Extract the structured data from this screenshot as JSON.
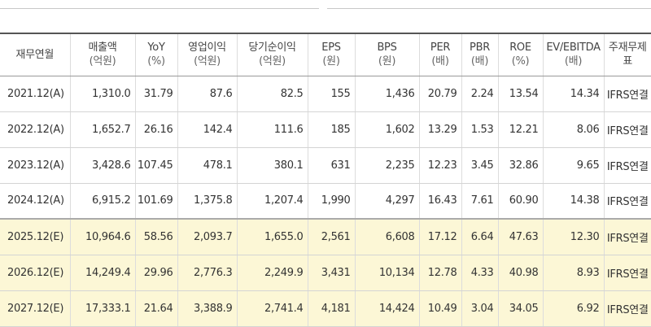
{
  "table": {
    "columns": [
      {
        "label": "재무연월",
        "unit": ""
      },
      {
        "label": "매출액",
        "unit": "(억원)"
      },
      {
        "label": "YoY",
        "unit": "(%)"
      },
      {
        "label": "영업이익",
        "unit": "(억원)"
      },
      {
        "label": "당기순이익",
        "unit": "(억원)"
      },
      {
        "label": "EPS",
        "unit": "(원)"
      },
      {
        "label": "BPS",
        "unit": "(원)"
      },
      {
        "label": "PER",
        "unit": "(배)"
      },
      {
        "label": "PBR",
        "unit": "(배)"
      },
      {
        "label": "ROE",
        "unit": "(%)"
      },
      {
        "label": "EV/EBITDA",
        "unit": "(배)"
      },
      {
        "label": "주재무제표",
        "unit": ""
      }
    ],
    "rows": [
      {
        "period": "2021.12(A)",
        "estimate": false,
        "values": [
          "1,310.0",
          "31.79",
          "87.6",
          "82.5",
          "155",
          "1,436",
          "20.79",
          "2.24",
          "13.54",
          "14.34"
        ],
        "basis": "IFRS연결"
      },
      {
        "period": "2022.12(A)",
        "estimate": false,
        "values": [
          "1,652.7",
          "26.16",
          "142.4",
          "111.6",
          "185",
          "1,602",
          "13.29",
          "1.53",
          "12.21",
          "8.06"
        ],
        "basis": "IFRS연결"
      },
      {
        "period": "2023.12(A)",
        "estimate": false,
        "values": [
          "3,428.6",
          "107.45",
          "478.1",
          "380.1",
          "631",
          "2,235",
          "12.23",
          "3.45",
          "32.86",
          "9.65"
        ],
        "basis": "IFRS연결"
      },
      {
        "period": "2024.12(A)",
        "estimate": false,
        "values": [
          "6,915.2",
          "101.69",
          "1,375.8",
          "1,207.4",
          "1,990",
          "4,297",
          "16.43",
          "7.61",
          "60.90",
          "14.38"
        ],
        "basis": "IFRS연결"
      },
      {
        "period": "2025.12(E)",
        "estimate": true,
        "values": [
          "10,964.6",
          "58.56",
          "2,093.7",
          "1,655.0",
          "2,561",
          "6,608",
          "17.12",
          "6.64",
          "47.63",
          "12.30"
        ],
        "basis": "IFRS연결"
      },
      {
        "period": "2026.12(E)",
        "estimate": true,
        "values": [
          "14,249.4",
          "29.96",
          "2,776.3",
          "2,249.9",
          "3,431",
          "10,134",
          "12.78",
          "4.33",
          "40.98",
          "8.93"
        ],
        "basis": "IFRS연결"
      },
      {
        "period": "2027.12(E)",
        "estimate": true,
        "values": [
          "17,333.1",
          "21.64",
          "3,388.9",
          "2,741.4",
          "4,181",
          "14,424",
          "10.49",
          "3.04",
          "34.05",
          "6.92"
        ],
        "basis": "IFRS연결"
      }
    ]
  },
  "colors": {
    "estimate_row_bg": "#fcf7d6",
    "header_border": "#555555",
    "text": "#333333"
  }
}
